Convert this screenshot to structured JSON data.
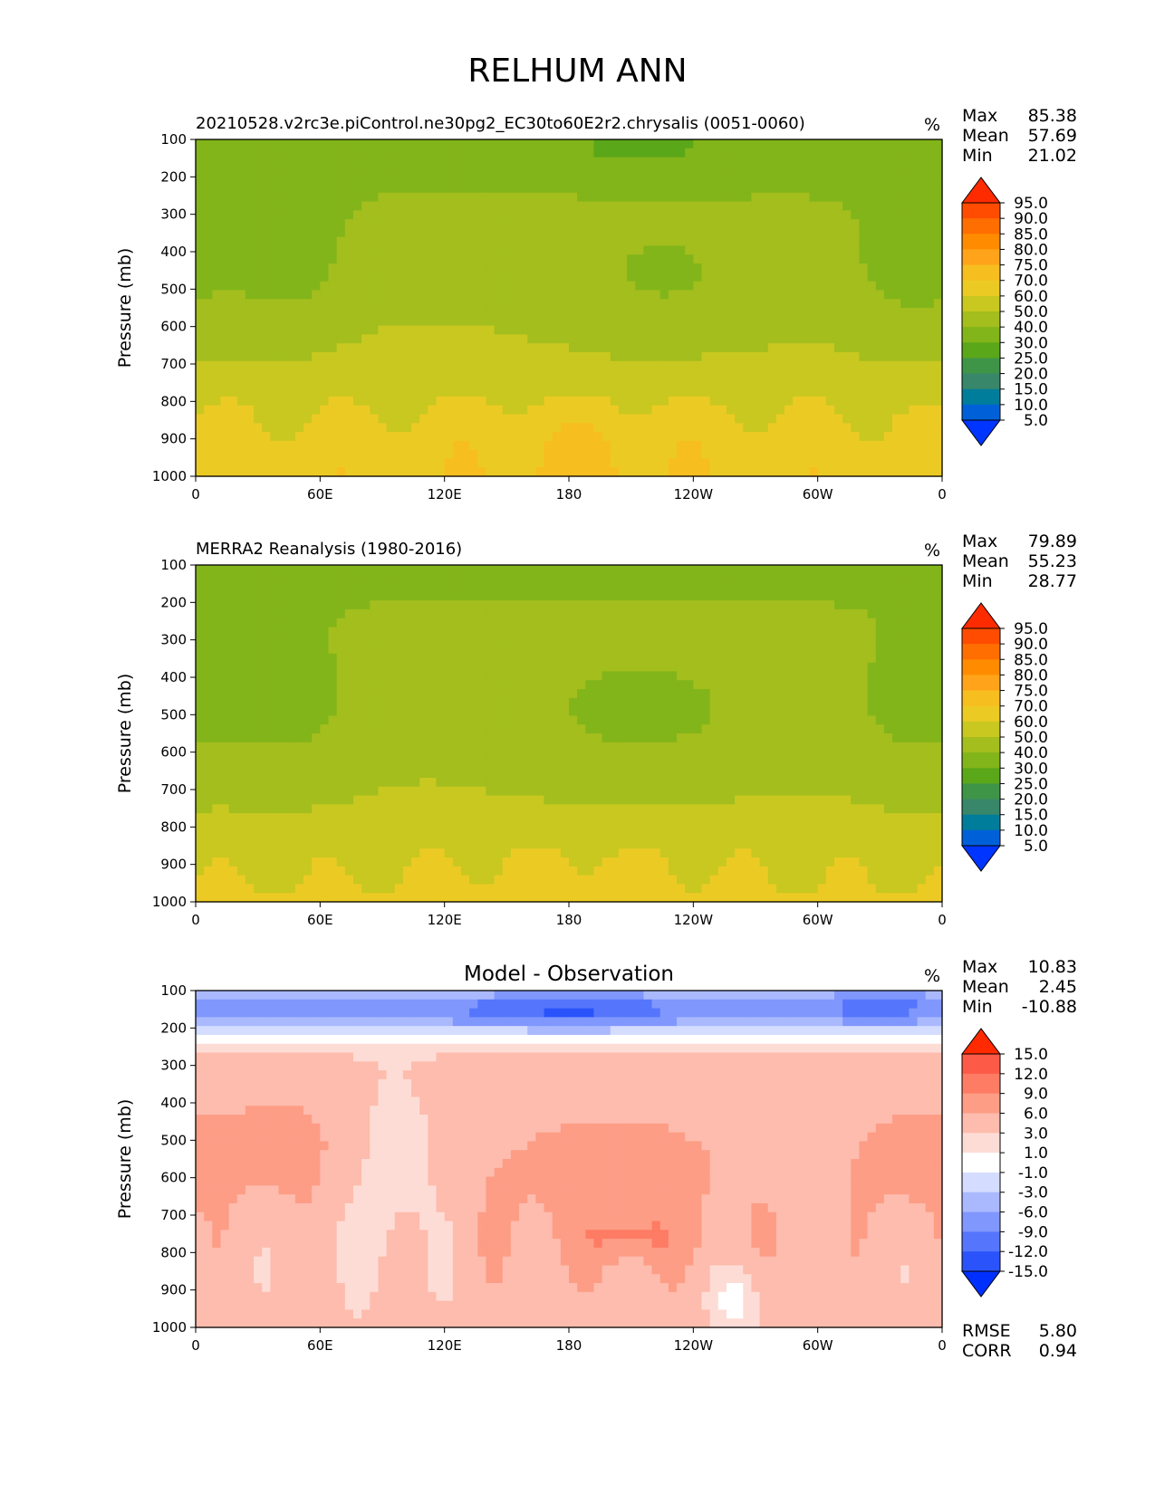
{
  "figure_title": "RELHUM ANN",
  "chart_data": [
    {
      "type": "heatmap",
      "title_left": "20210528.v2rc3e.piControl.ne30pg2_EC30to60E2r2.chrysalis (0051-0060)",
      "title_center": "",
      "units": "%",
      "ylabel": "Pressure (mb)",
      "x_ticks": [
        "0",
        "60E",
        "120E",
        "180",
        "120W",
        "60W",
        "0"
      ],
      "y_ticks": [
        "100",
        "200",
        "300",
        "400",
        "500",
        "600",
        "700",
        "800",
        "900",
        "1000"
      ],
      "stats": [
        {
          "label": "Max",
          "value": "85.38"
        },
        {
          "label": "Mean",
          "value": "57.69"
        },
        {
          "label": "Min",
          "value": "21.02"
        }
      ],
      "levels": [
        "95.0",
        "90.0",
        "85.0",
        "80.0",
        "75.0",
        "70.0",
        "60.0",
        "50.0",
        "40.0",
        "30.0",
        "25.0",
        "20.0",
        "15.0",
        "10.0",
        "5.0"
      ],
      "colors": [
        "#ff2b00",
        "#ff4c00",
        "#ff6e00",
        "#ff8c00",
        "#ffa41a",
        "#f7be20",
        "#ecca24",
        "#c8c820",
        "#a3be1d",
        "#82b51a",
        "#5aa719",
        "#3e9548",
        "#38876a",
        "#007d9a",
        "#0060d8",
        "#0035ff"
      ],
      "field": "model"
    },
    {
      "type": "heatmap",
      "title_left": "MERRA2 Reanalysis (1980-2016)",
      "title_center": "",
      "units": "%",
      "ylabel": "Pressure (mb)",
      "x_ticks": [
        "0",
        "60E",
        "120E",
        "180",
        "120W",
        "60W",
        "0"
      ],
      "y_ticks": [
        "100",
        "200",
        "300",
        "400",
        "500",
        "600",
        "700",
        "800",
        "900",
        "1000"
      ],
      "stats": [
        {
          "label": "Max",
          "value": "79.89"
        },
        {
          "label": "Mean",
          "value": "55.23"
        },
        {
          "label": "Min",
          "value": "28.77"
        }
      ],
      "levels": [
        "95.0",
        "90.0",
        "85.0",
        "80.0",
        "75.0",
        "70.0",
        "60.0",
        "50.0",
        "40.0",
        "30.0",
        "25.0",
        "20.0",
        "15.0",
        "10.0",
        "5.0"
      ],
      "colors": [
        "#ff2b00",
        "#ff4c00",
        "#ff6e00",
        "#ff8c00",
        "#ffa41a",
        "#f7be20",
        "#ecca24",
        "#c8c820",
        "#a3be1d",
        "#82b51a",
        "#5aa719",
        "#3e9548",
        "#38876a",
        "#007d9a",
        "#0060d8",
        "#0035ff"
      ],
      "field": "obs"
    },
    {
      "type": "heatmap",
      "title_left": "",
      "title_center": "Model - Observation",
      "units": "%",
      "ylabel": "Pressure (mb)",
      "x_ticks": [
        "0",
        "60E",
        "120E",
        "180",
        "120W",
        "60W",
        "0"
      ],
      "y_ticks": [
        "100",
        "200",
        "300",
        "400",
        "500",
        "600",
        "700",
        "800",
        "900",
        "1000"
      ],
      "stats": [
        {
          "label": "Max",
          "value": "10.83"
        },
        {
          "label": "Mean",
          "value": "2.45"
        },
        {
          "label": "Min",
          "value": "-10.88"
        }
      ],
      "levels": [
        "15.0",
        "12.0",
        "9.0",
        "6.0",
        "3.0",
        "1.0",
        "-1.0",
        "-3.0",
        "-6.0",
        "-9.0",
        "-12.0",
        "-15.0"
      ],
      "colors": [
        "#ff2a00",
        "#fe5a48",
        "#fe7b64",
        "#fd9d86",
        "#fdbcad",
        "#fedcd6",
        "#ffffff",
        "#d4dcff",
        "#aab9fe",
        "#8097fd",
        "#5576fc",
        "#2b53fb",
        "#0030ff"
      ],
      "field": "diff",
      "footer_stats": [
        {
          "label": "RMSE",
          "value": "5.80"
        },
        {
          "label": "CORR",
          "value": "0.94"
        }
      ]
    }
  ]
}
